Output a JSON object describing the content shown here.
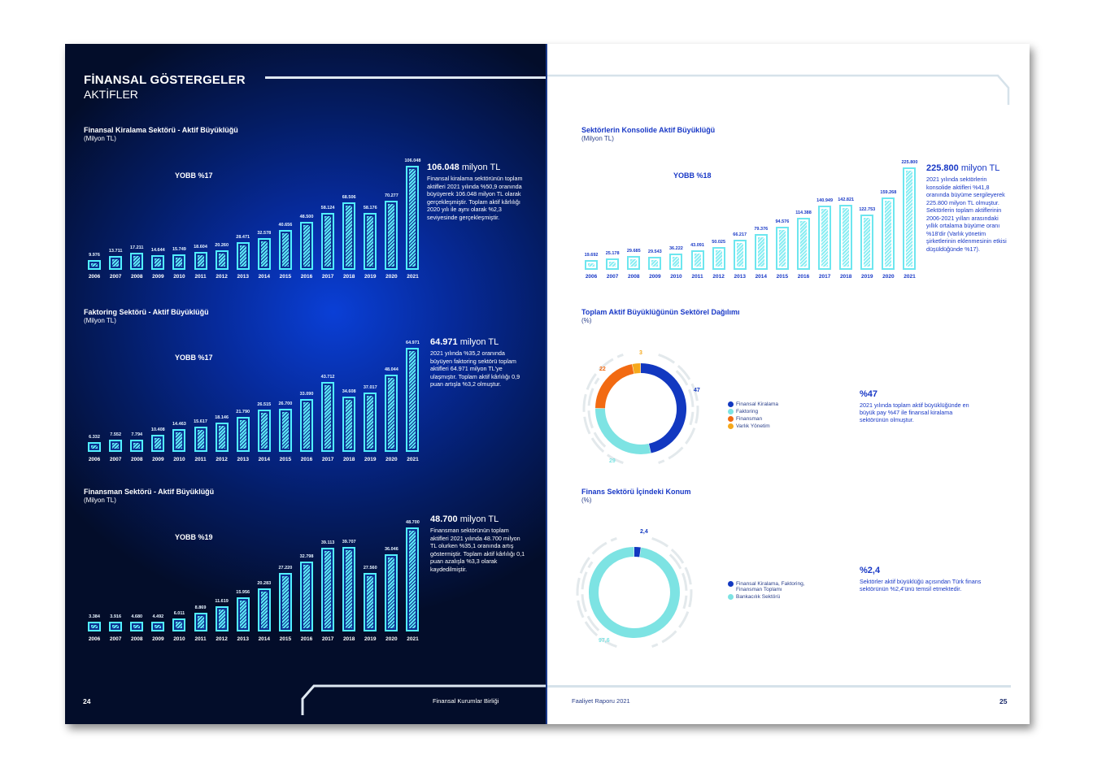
{
  "left_page": {
    "title": "FİNANSAL GÖSTERGELER",
    "subtitle": "AKTİFLER",
    "page_number": "24",
    "footer_text": "Finansal Kurumlar Birliği"
  },
  "right_page": {
    "page_number": "25",
    "footer_text": "Faaliyet Raporu 2021"
  },
  "chart_data": [
    {
      "type": "bar",
      "title": "Finansal Kiralama Sektörü - Aktif Büyüklüğü",
      "unit": "(Milyon TL)",
      "annotation": "YOBB %17",
      "categories": [
        "2006",
        "2007",
        "2008",
        "2009",
        "2010",
        "2011",
        "2012",
        "2013",
        "2014",
        "2015",
        "2016",
        "2017",
        "2018",
        "2019",
        "2020",
        "2021"
      ],
      "values": [
        9976,
        13711,
        17211,
        14644,
        15749,
        18604,
        20260,
        28471,
        32578,
        40656,
        48500,
        58124,
        68506,
        58176,
        70277,
        106048
      ],
      "labels": [
        "9.976",
        "13.711",
        "17.211",
        "14.644",
        "15.749",
        "18.604",
        "20.260",
        "28.471",
        "32.578",
        "40.656",
        "48.500",
        "58.124",
        "68.506",
        "58.176",
        "70.277",
        "106.048"
      ],
      "note_value": "106.048",
      "note_unit": "milyon TL",
      "note_body": "Finansal kiralama sektörünün toplam aktifleri 2021 yılında %50,9 oranında büyüyerek 106.048 milyon TL olarak gerçekleşmiştir. Toplam aktif kârlılığı 2020 yılı ile aynı olarak %2,3 seviyesinde gerçekleşmiştir."
    },
    {
      "type": "bar",
      "title": "Faktoring Sektörü - Aktif Büyüklüğü",
      "unit": "(Milyon TL)",
      "annotation": "YOBB %17",
      "categories": [
        "2006",
        "2007",
        "2008",
        "2009",
        "2010",
        "2011",
        "2012",
        "2013",
        "2014",
        "2015",
        "2016",
        "2017",
        "2018",
        "2019",
        "2020",
        "2021"
      ],
      "values": [
        6332,
        7552,
        7794,
        10408,
        14463,
        15617,
        18146,
        21790,
        26515,
        26700,
        33090,
        43712,
        34608,
        37017,
        48044,
        64971
      ],
      "labels": [
        "6.332",
        "7.552",
        "7.794",
        "10.408",
        "14.463",
        "15.617",
        "18.146",
        "21.790",
        "26.515",
        "26.700",
        "33.090",
        "43.712",
        "34.608",
        "37.017",
        "48.044",
        "64.971"
      ],
      "note_value": "64.971",
      "note_unit": "milyon TL",
      "note_body": "2021 yılında %35,2 oranında büyüyen faktoring sektörü toplam aktifleri 64.971 milyon TL'ye ulaşmıştır. Toplam aktif kârlılığı 0,9 puan artışla %3,2 olmuştur."
    },
    {
      "type": "bar",
      "title": "Finansman Sektörü - Aktif Büyüklüğü",
      "unit": "(Milyon TL)",
      "annotation": "YOBB %19",
      "categories": [
        "2006",
        "2007",
        "2008",
        "2009",
        "2010",
        "2011",
        "2012",
        "2013",
        "2014",
        "2015",
        "2016",
        "2017",
        "2018",
        "2019",
        "2020",
        "2021"
      ],
      "values": [
        3384,
        3916,
        4680,
        4492,
        6011,
        8869,
        11619,
        15956,
        20283,
        27220,
        32798,
        39113,
        39707,
        27560,
        36046,
        48700
      ],
      "labels": [
        "3.384",
        "3.916",
        "4.680",
        "4.492",
        "6.011",
        "8.869",
        "11.619",
        "15.956",
        "20.283",
        "27.220",
        "32.798",
        "39.113",
        "39.707",
        "27.560",
        "36.046",
        "48.700"
      ],
      "note_value": "48.700",
      "note_unit": "milyon TL",
      "note_body": "Finansman sektörünün toplam aktifleri 2021 yılında 48.700 milyon TL olurken %35,1 oranında artış göstermiştir. Toplam aktif kârlılığı 0,1 puan azalışla %3,3 olarak kaydedilmiştir."
    },
    {
      "type": "bar",
      "title": "Sektörlerin Konsolide Aktif Büyüklüğü",
      "unit": "(Milyon TL)",
      "annotation": "YOBB %18",
      "categories": [
        "2006",
        "2007",
        "2008",
        "2009",
        "2010",
        "2011",
        "2012",
        "2013",
        "2014",
        "2015",
        "2016",
        "2017",
        "2018",
        "2019",
        "2020",
        "2021"
      ],
      "values": [
        19692,
        25178,
        29685,
        29543,
        36222,
        43091,
        50025,
        66217,
        79376,
        94576,
        114388,
        140949,
        142821,
        122753,
        159268,
        225800
      ],
      "labels": [
        "19.692",
        "25.178",
        "29.685",
        "29.543",
        "36.222",
        "43.091",
        "50.025",
        "66.217",
        "79.376",
        "94.576",
        "114.388",
        "140.949",
        "142.821",
        "122.753",
        "159.268",
        "225.800"
      ],
      "note_value": "225.800",
      "note_unit": "milyon TL",
      "note_body": "2021 yılında sektörlerin konsolide aktifleri %41,8 oranında büyüme sergileyerek 225.800 milyon TL olmuştur. Sektörlerin toplam aktiflerinin 2006-2021 yılları arasındaki yıllık ortalama büyüme oranı %18'dir (Varlık yönetim şirketlerinin eklenmesinin etkisi düşüldüğünde %17)."
    },
    {
      "type": "pie",
      "title": "Toplam Aktif Büyüklüğünün Sektörel Dağılımı",
      "unit": "(%)",
      "categories": [
        "Finansal Kiralama",
        "Faktoring",
        "Finansman",
        "Varlık Yönetim"
      ],
      "values": [
        47,
        29,
        22,
        3
      ],
      "labels": [
        "47",
        "29",
        "22",
        "3"
      ],
      "colors": [
        "#1238c0",
        "#7de3e3",
        "#f26a12",
        "#f5a81c"
      ],
      "stat_value": "%47",
      "stat_body": "2021 yılında toplam aktif büyüklüğünde en büyük pay %47 ile finansal kiralama sektörünün olmuştur."
    },
    {
      "type": "pie",
      "title": "Finans Sektörü İçindeki Konum",
      "unit": "(%)",
      "categories": [
        "Finansal Kiralama, Faktoring, Finansman Toplamı",
        "Bankacılık Sektörü"
      ],
      "values": [
        2.4,
        97.6
      ],
      "labels": [
        "2,4",
        "97,6"
      ],
      "colors": [
        "#1238c0",
        "#7de3e3"
      ],
      "stat_value": "%2,4",
      "stat_body": "Sektörler aktif büyüklüğü açısından Türk finans sektörünün %2,4'ünü temsil etmektedir."
    }
  ]
}
